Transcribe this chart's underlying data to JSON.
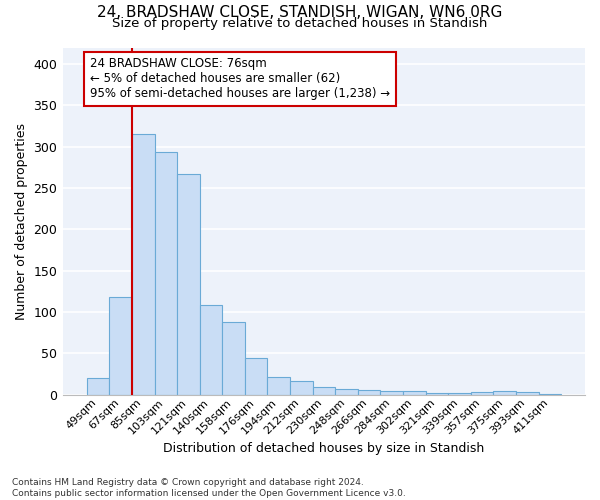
{
  "title1": "24, BRADSHAW CLOSE, STANDISH, WIGAN, WN6 0RG",
  "title2": "Size of property relative to detached houses in Standish",
  "xlabel": "Distribution of detached houses by size in Standish",
  "ylabel": "Number of detached properties",
  "categories": [
    "49sqm",
    "67sqm",
    "85sqm",
    "103sqm",
    "121sqm",
    "140sqm",
    "158sqm",
    "176sqm",
    "194sqm",
    "212sqm",
    "230sqm",
    "248sqm",
    "266sqm",
    "284sqm",
    "302sqm",
    "321sqm",
    "339sqm",
    "357sqm",
    "375sqm",
    "393sqm",
    "411sqm"
  ],
  "values": [
    20,
    118,
    315,
    293,
    267,
    109,
    88,
    44,
    21,
    16,
    9,
    7,
    6,
    5,
    4,
    2,
    2,
    3,
    4,
    3,
    1
  ],
  "bar_color": "#c9ddf5",
  "bar_edgecolor": "#6aaad6",
  "bg_color": "#edf2fa",
  "grid_color": "#ffffff",
  "vline_color": "#cc0000",
  "vline_pos": 1.5,
  "annotation_text": "24 BRADSHAW CLOSE: 76sqm\n← 5% of detached houses are smaller (62)\n95% of semi-detached houses are larger (1,238) →",
  "annotation_box_edgecolor": "#cc0000",
  "footnote1": "Contains HM Land Registry data © Crown copyright and database right 2024.",
  "footnote2": "Contains public sector information licensed under the Open Government Licence v3.0.",
  "ylim": [
    0,
    420
  ],
  "yticks": [
    0,
    50,
    100,
    150,
    200,
    250,
    300,
    350,
    400
  ]
}
